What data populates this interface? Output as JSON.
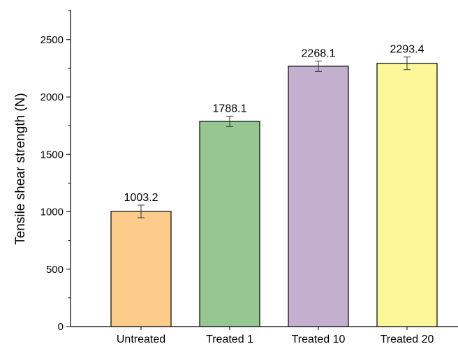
{
  "chart_data": {
    "type": "bar",
    "title": "",
    "xlabel": "",
    "ylabel": "Tensile shear strength (N)",
    "categories": [
      "Untreated",
      "Treated 1",
      "Treated 10",
      "Treated 20"
    ],
    "values": [
      1003.2,
      1788.1,
      2268.1,
      2293.4
    ],
    "value_labels": [
      "1003.2",
      "1788.1",
      "2268.1",
      "2293.4"
    ],
    "error": [
      55,
      45,
      45,
      55
    ],
    "ylim": [
      0,
      2800
    ],
    "yticks": [
      0,
      500,
      1000,
      1500,
      2000,
      2500
    ],
    "ytick_labels": [
      "0",
      "500",
      "1000",
      "1500",
      "2000",
      "2500"
    ],
    "grid": false,
    "legend": "none",
    "colors": [
      "#fdcc8a",
      "#96c792",
      "#c3b0ce",
      "#fcf899"
    ],
    "bar_edge_color": "#000000"
  }
}
